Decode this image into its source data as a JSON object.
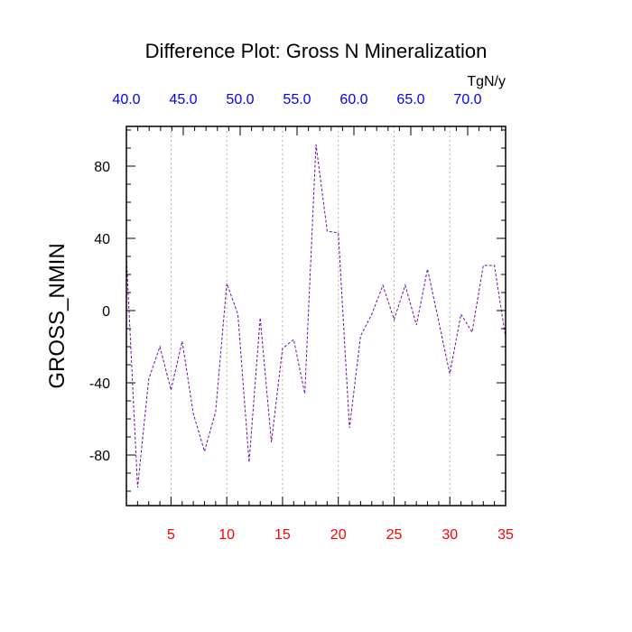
{
  "chart_data": {
    "type": "line",
    "title": "Difference Plot: Gross N Mineralization",
    "ylabel": "GROSS_NMIN",
    "top_axis_unit": "TgN/y",
    "xlim": [
      1,
      35
    ],
    "ylim": [
      -108,
      102
    ],
    "grid": "vertical-dotted",
    "series_color": "#6a0dad",
    "x_tick_color": "#ff0000",
    "top_tick_color": "#0000ff",
    "x_ticks": [
      5,
      10,
      15,
      20,
      25,
      30,
      35
    ],
    "x_tick_labels": [
      "5",
      "10",
      "15",
      "20",
      "25",
      "30",
      "35"
    ],
    "y_ticks": [
      -80,
      -40,
      0,
      40,
      80
    ],
    "y_tick_labels": [
      "-80",
      "-40",
      "0",
      "40",
      "80"
    ],
    "top_ticks": [
      1,
      6.1,
      11.2,
      16.3,
      21.4,
      26.5,
      31.6
    ],
    "top_tick_labels": [
      "40.0",
      "45.0",
      "50.0",
      "55.0",
      "60.0",
      "65.0",
      "70.0"
    ],
    "x": [
      1,
      2,
      3,
      4,
      5,
      6,
      7,
      8,
      9,
      10,
      11,
      12,
      13,
      14,
      15,
      16,
      17,
      18,
      19,
      20,
      21,
      22,
      23,
      24,
      25,
      26,
      27,
      28,
      29,
      30,
      31,
      32,
      33,
      34,
      35
    ],
    "values": [
      30,
      -98,
      -38,
      -20,
      -44,
      -17,
      -57,
      -78,
      -56,
      15,
      -2,
      -84,
      -4,
      -73,
      -21,
      -16,
      -46,
      92,
      44,
      43,
      -65,
      -14,
      -2,
      14,
      -5,
      14,
      -8,
      23,
      -6,
      -35,
      -2,
      -12,
      25,
      25,
      -15
    ]
  }
}
